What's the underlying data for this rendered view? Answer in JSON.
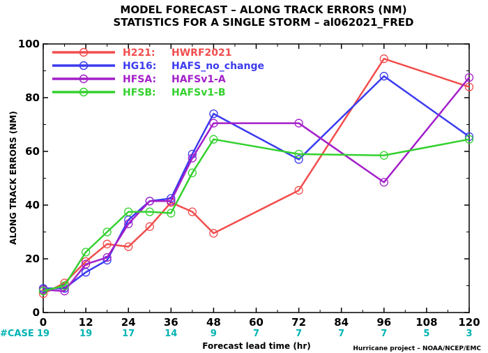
{
  "chart_data": {
    "type": "line",
    "title": "MODEL FORECAST – ALONG TRACK ERRORS (NM)",
    "subtitle": "STATISTICS FOR A SINGLE STORM – al062021_FRED",
    "xlabel": "Forecast lead time (hr)",
    "ylabel": "ALONG TRACK ERRORS (NM)",
    "xlim": [
      0,
      120
    ],
    "ylim": [
      0,
      100
    ],
    "xticks": [
      0,
      12,
      24,
      36,
      48,
      60,
      72,
      84,
      96,
      108,
      120
    ],
    "yticks": [
      0,
      20,
      40,
      60,
      80,
      100
    ],
    "legend_position": "top-left",
    "series": [
      {
        "name": "H221:",
        "label": "HWRF2021",
        "color": "#f24d4d",
        "x": [
          0,
          6,
          12,
          18,
          24,
          30,
          36,
          42,
          48,
          72,
          96,
          120
        ],
        "y": [
          7,
          11,
          19,
          25.5,
          24.5,
          32,
          41,
          37.5,
          29.5,
          45.5,
          94.5,
          84
        ]
      },
      {
        "name": "HG16:",
        "label": "HAFS_no_change",
        "color": "#3b3bf0",
        "x": [
          0,
          6,
          12,
          18,
          24,
          30,
          36,
          42,
          48,
          72,
          96,
          120
        ],
        "y": [
          9,
          9,
          15,
          19.5,
          34.5,
          41.5,
          42.5,
          59,
          74,
          57,
          88,
          65.5
        ]
      },
      {
        "name": "HFSA:",
        "label": "HAFSv1-A",
        "color": "#a31fc9",
        "x": [
          0,
          6,
          12,
          18,
          24,
          30,
          36,
          42,
          48,
          72,
          96,
          120
        ],
        "y": [
          8.5,
          8,
          18,
          20.5,
          33,
          41.5,
          41.5,
          57.5,
          70.5,
          70.5,
          48.5,
          87.5
        ]
      },
      {
        "name": "HFSB:",
        "label": "HAFSv1-B",
        "color": "#33d12e",
        "x": [
          0,
          6,
          12,
          18,
          24,
          30,
          36,
          42,
          48,
          72,
          96,
          120
        ],
        "y": [
          8,
          10,
          22.5,
          30,
          37.5,
          37.5,
          37,
          52,
          64.5,
          59,
          58.5,
          64.5
        ]
      }
    ],
    "case_label": "#CASE",
    "case_x": [
      0,
      12,
      24,
      36,
      48,
      60,
      72,
      84,
      96,
      108,
      120
    ],
    "case_counts": [
      "19",
      "19",
      "17",
      "14",
      "9",
      "7",
      "7",
      "7",
      "7",
      "5",
      "3"
    ],
    "credit": "Hurricane project – NOAA/NCEP/EMC",
    "grid": false
  }
}
